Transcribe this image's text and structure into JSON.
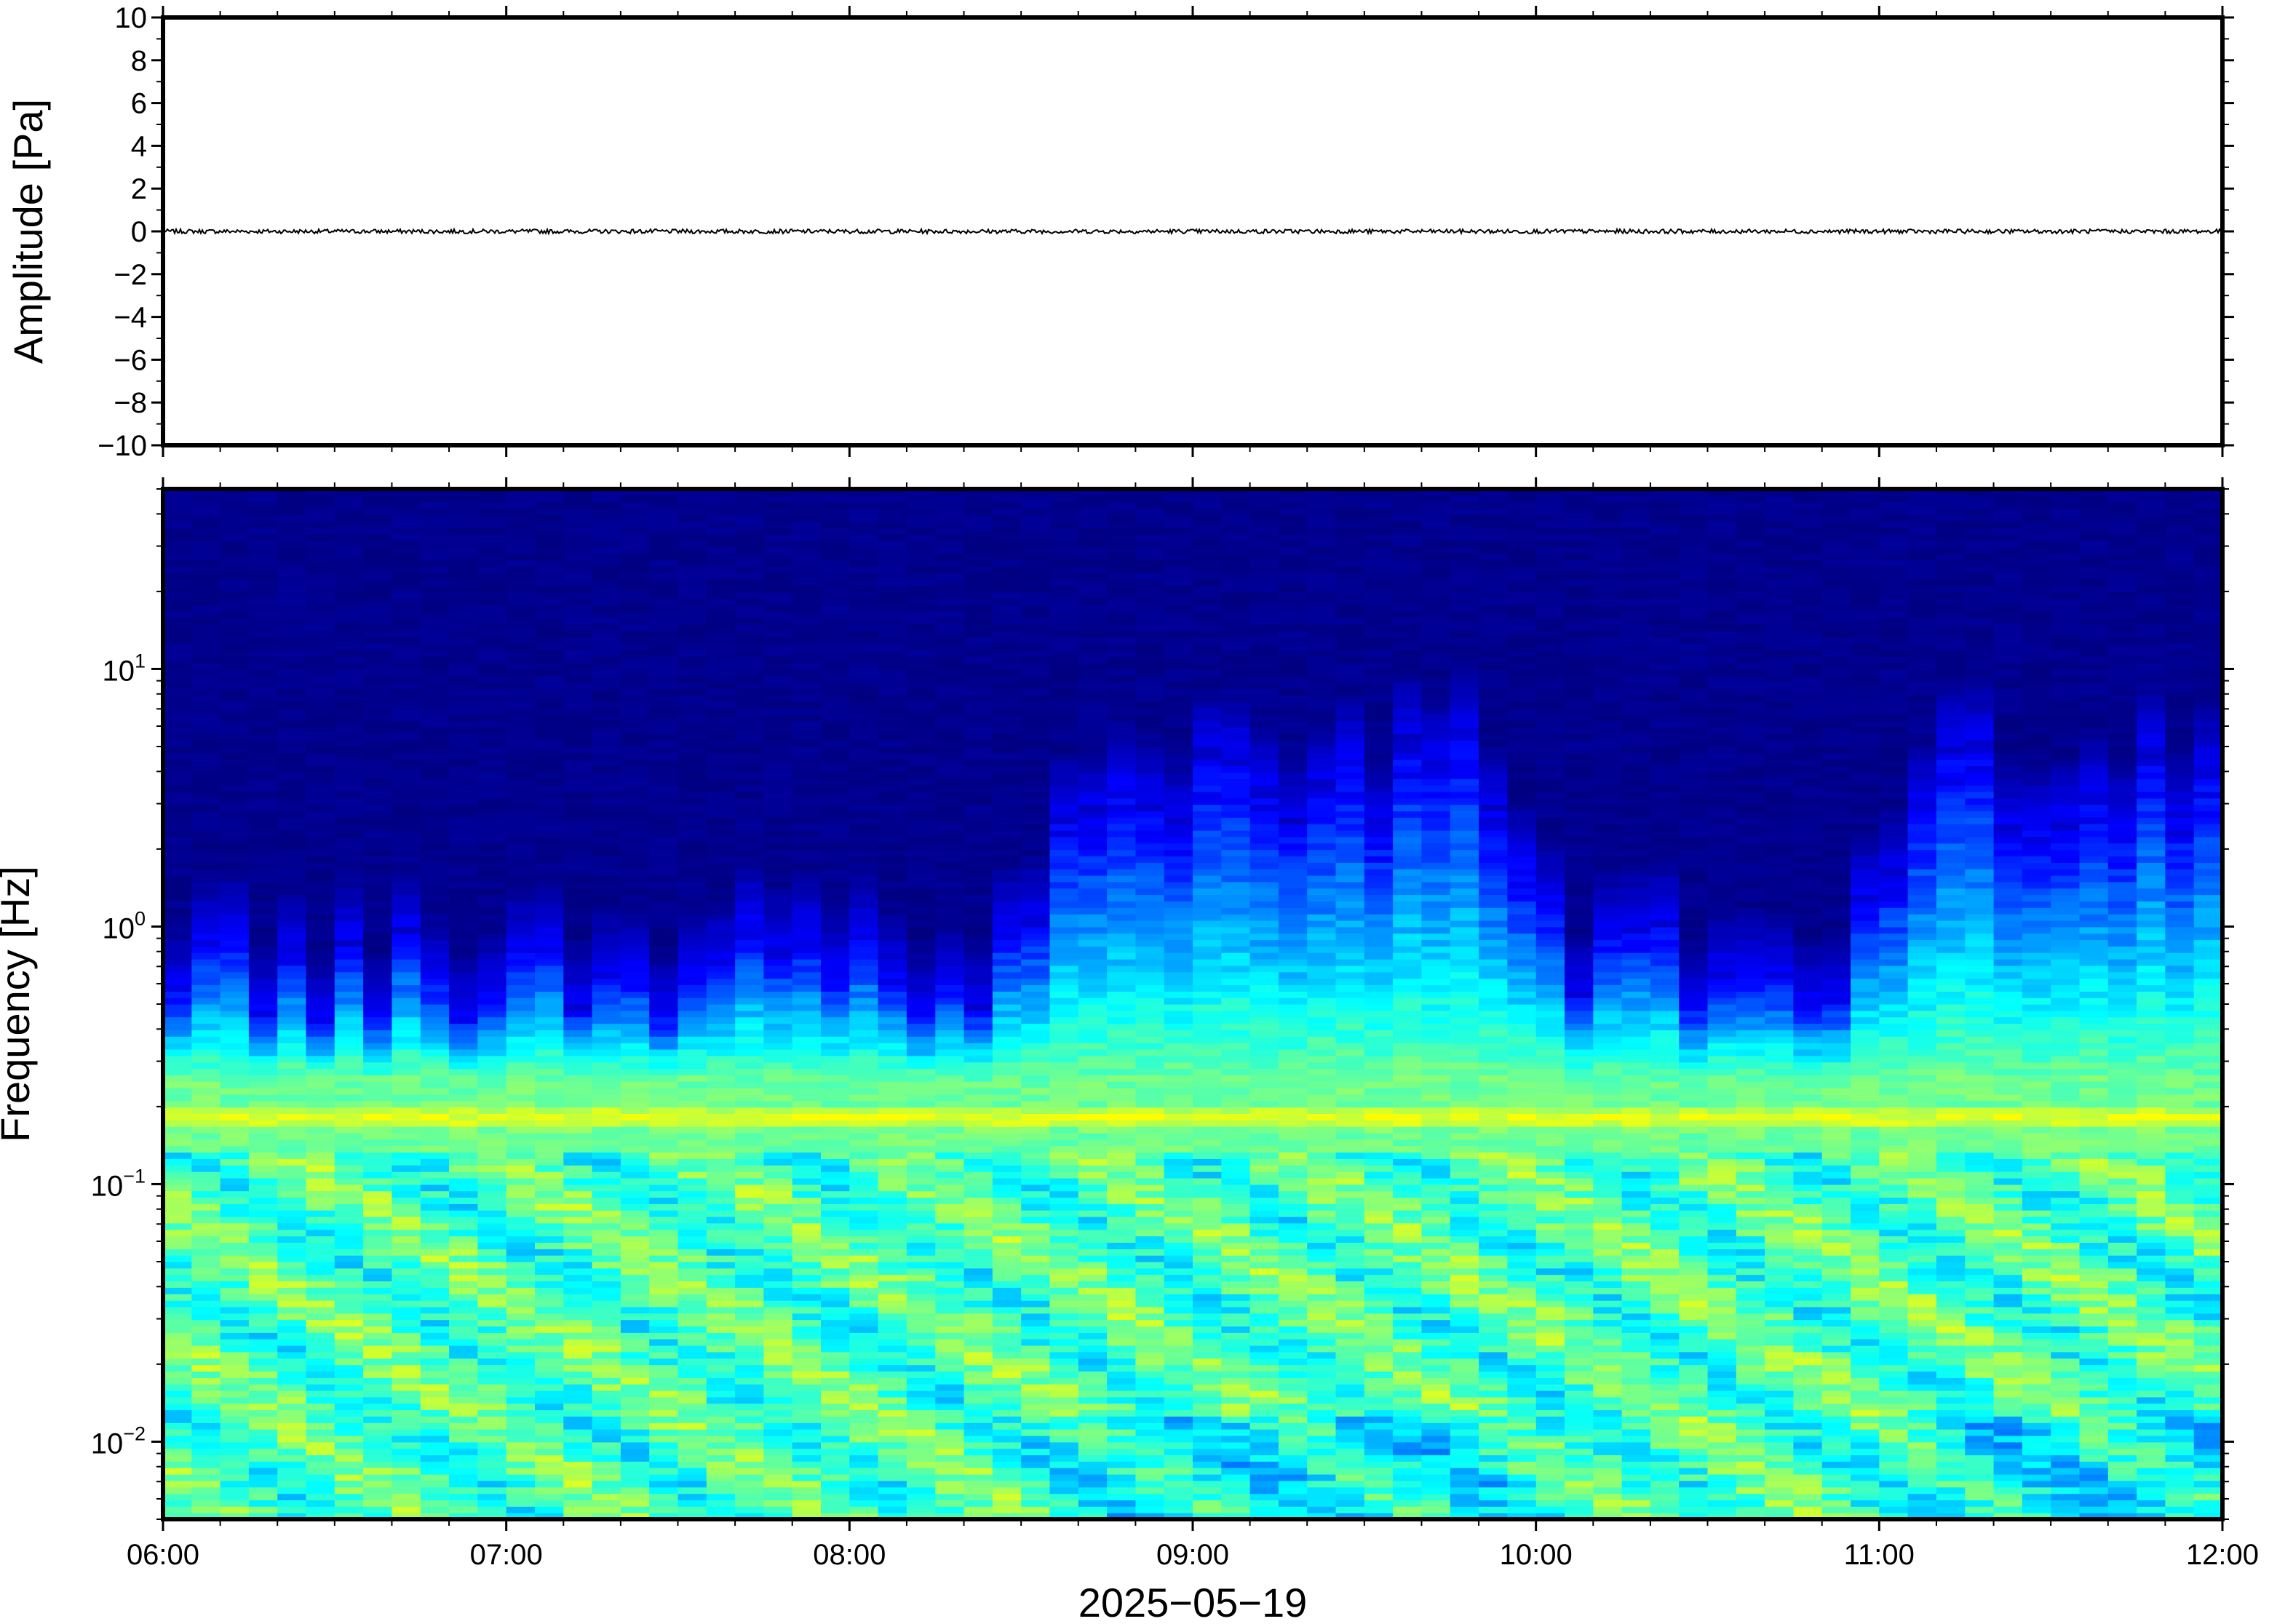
{
  "chart_data": [
    {
      "type": "line",
      "ylabel": "Amplitude [Pa]",
      "ylim": [
        -10,
        10
      ],
      "yticks": [
        10,
        8,
        6,
        4,
        2,
        0,
        -2,
        -4,
        -6,
        -8,
        -10
      ],
      "ytick_labels": [
        "10",
        "8",
        "6",
        "4",
        "2",
        "0",
        "−2",
        "−4",
        "−6",
        "−8",
        "−10"
      ],
      "xlim": [
        "06:00",
        "12:00"
      ],
      "series": [
        {
          "values_summary": "pressure trace near 0 Pa, peak amplitude about 0.2 Pa",
          "mean": 0,
          "max_abs": 0.2
        }
      ],
      "line_color": "#000000"
    },
    {
      "type": "heatmap",
      "ylabel": "Frequency [Hz]",
      "xlabel": "2025−05−19",
      "y_scale": "log",
      "ylim": [
        0.005,
        50
      ],
      "yticks": [
        {
          "value": 10,
          "base": "10",
          "exp": "1"
        },
        {
          "value": 1,
          "base": "10",
          "exp": "0"
        },
        {
          "value": 0.1,
          "base": "10",
          "exp": "−1"
        },
        {
          "value": 0.01,
          "base": "10",
          "exp": "−2"
        }
      ],
      "xticks": [
        "06:00",
        "07:00",
        "08:00",
        "09:00",
        "10:00",
        "11:00",
        "12:00"
      ],
      "xlim": [
        "06:00",
        "12:00"
      ],
      "colormap": "jet",
      "colormap_stops": [
        "#000080",
        "#0000ff",
        "#0080ff",
        "#00ffff",
        "#80ff80",
        "#ffff00",
        "#ff8000",
        "#ff0000"
      ],
      "features": {
        "microbarom_band_hz": [
          0.15,
          0.22
        ],
        "microbarom_level": 0.68,
        "background_level_high_freq": 0.0,
        "activity_periods": [
          "08:45–09:50",
          "11:10–12:00"
        ]
      }
    }
  ]
}
